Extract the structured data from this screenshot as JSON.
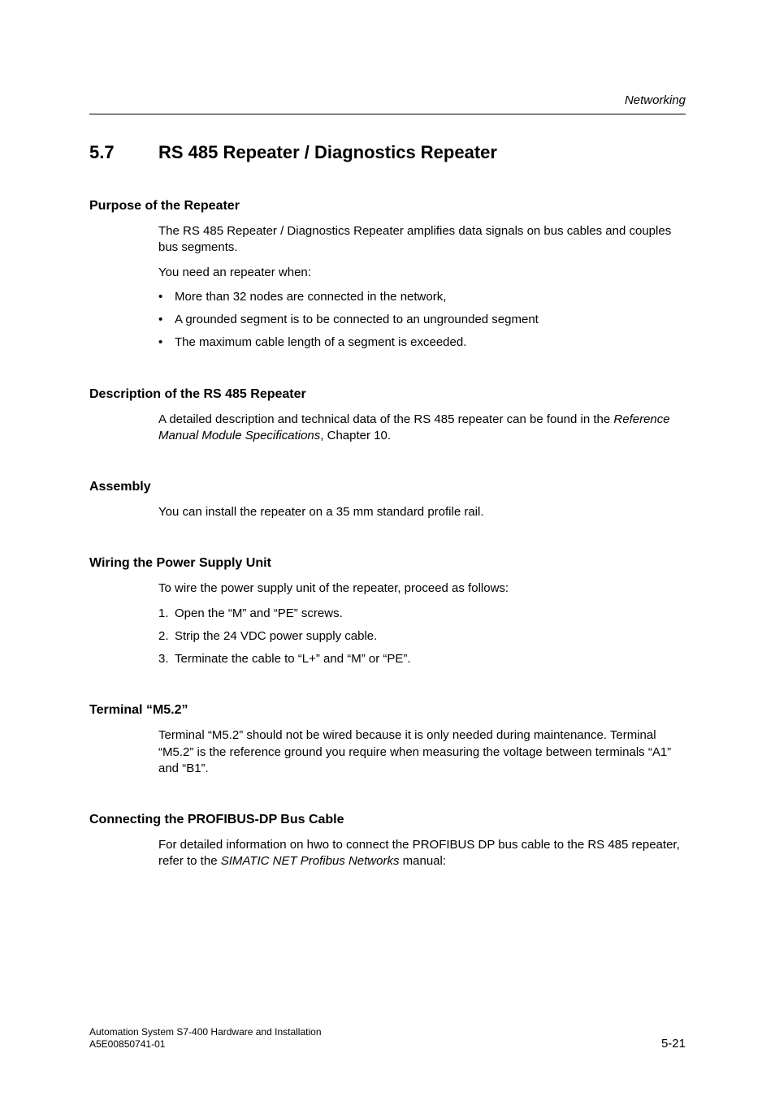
{
  "running_head": "Networking",
  "section": {
    "number": "5.7",
    "title": "RS 485 Repeater / Diagnostics Repeater"
  },
  "blocks": {
    "purpose": {
      "heading": "Purpose of the Repeater",
      "p1": "The RS 485 Repeater / Diagnostics Repeater amplifies data signals on bus cables and couples bus segments.",
      "p2": "You need an repeater when:",
      "bullets": [
        "More than 32 nodes are connected in the network,",
        "A grounded segment is to be connected to an ungrounded segment",
        "The maximum cable length of a segment is exceeded."
      ]
    },
    "description": {
      "heading": "Description of the RS 485 Repeater",
      "prefix": "A detailed description and technical data of the RS 485 repeater can be found in the ",
      "italic": "Reference Manual Module Specifications",
      "suffix": ", Chapter 10."
    },
    "assembly": {
      "heading": "Assembly",
      "p1": "You can install the repeater on a 35 mm standard profile rail."
    },
    "wiring": {
      "heading": "Wiring the Power Supply Unit",
      "p1": "To wire the power supply unit of the repeater, proceed as follows:",
      "steps": [
        "Open the “M” and “PE” screws.",
        "Strip the 24 VDC power supply cable.",
        "Terminate the cable to “L+” and “M” or “PE”."
      ]
    },
    "terminal": {
      "heading": "Terminal “M5.2”",
      "p1": "Terminal “M5.2” should not be wired because it is only needed during maintenance. Terminal “M5.2” is the reference ground you require when measuring the voltage between terminals “A1” and “B1”."
    },
    "connecting": {
      "heading": "Connecting the PROFIBUS-DP Bus Cable",
      "prefix": "For detailed information on hwo to connect the PROFIBUS DP bus cable to the RS 485 repeater, refer to the ",
      "italic": "SIMATIC NET Profibus Networks",
      "suffix": " manual:"
    }
  },
  "footer": {
    "line1": "Automation System S7-400  Hardware and Installation",
    "line2": "A5E00850741-01",
    "pagenum": "5-21"
  }
}
